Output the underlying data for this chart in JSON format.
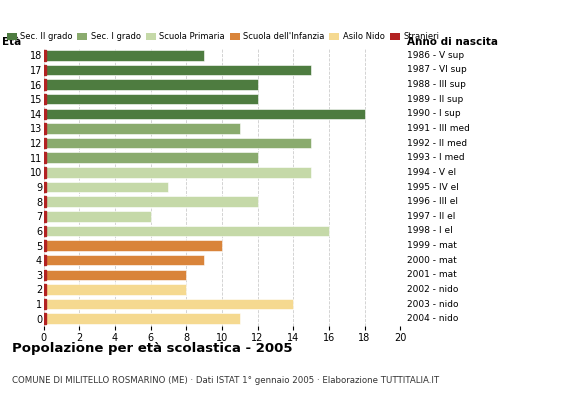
{
  "ages": [
    18,
    17,
    16,
    15,
    14,
    13,
    12,
    11,
    10,
    9,
    8,
    7,
    6,
    5,
    4,
    3,
    2,
    1,
    0
  ],
  "values": [
    9,
    15,
    12,
    12,
    18,
    11,
    15,
    12,
    15,
    7,
    12,
    6,
    16,
    10,
    9,
    8,
    8,
    14,
    11
  ],
  "right_labels": [
    "1986 - V sup",
    "1987 - VI sup",
    "1988 - III sup",
    "1989 - II sup",
    "1990 - I sup",
    "1991 - III med",
    "1992 - II med",
    "1993 - I med",
    "1994 - V el",
    "1995 - IV el",
    "1996 - III el",
    "1997 - II el",
    "1998 - I el",
    "1999 - mat",
    "2000 - mat",
    "2001 - mat",
    "2002 - nido",
    "2003 - nido",
    "2004 - nido"
  ],
  "bar_colors": [
    "#4e7c40",
    "#4e7c40",
    "#4e7c40",
    "#4e7c40",
    "#4e7c40",
    "#8aab6e",
    "#8aab6e",
    "#8aab6e",
    "#c5d9a8",
    "#c5d9a8",
    "#c5d9a8",
    "#c5d9a8",
    "#c5d9a8",
    "#d9843a",
    "#d9843a",
    "#d9843a",
    "#f5d990",
    "#f5d990",
    "#f5d990"
  ],
  "stranieri_color": "#b22222",
  "legend_labels": [
    "Sec. II grado",
    "Sec. I grado",
    "Scuola Primaria",
    "Scuola dell'Infanzia",
    "Asilo Nido",
    "Stranieri"
  ],
  "legend_colors": [
    "#4e7c40",
    "#8aab6e",
    "#c5d9a8",
    "#d9843a",
    "#f5d990",
    "#b22222"
  ],
  "title": "Popolazione per età scolastica - 2005",
  "subtitle": "COMUNE DI MILITELLO ROSMARINO (ME) · Dati ISTAT 1° gennaio 2005 · Elaborazione TUTTITALIA.IT",
  "xlabel_left": "Età",
  "xlabel_right": "Anno di nascita",
  "xlim": [
    0,
    20
  ],
  "xticks": [
    0,
    2,
    4,
    6,
    8,
    10,
    12,
    14,
    16,
    18,
    20
  ],
  "background_color": "#ffffff",
  "grid_color": "#cccccc"
}
